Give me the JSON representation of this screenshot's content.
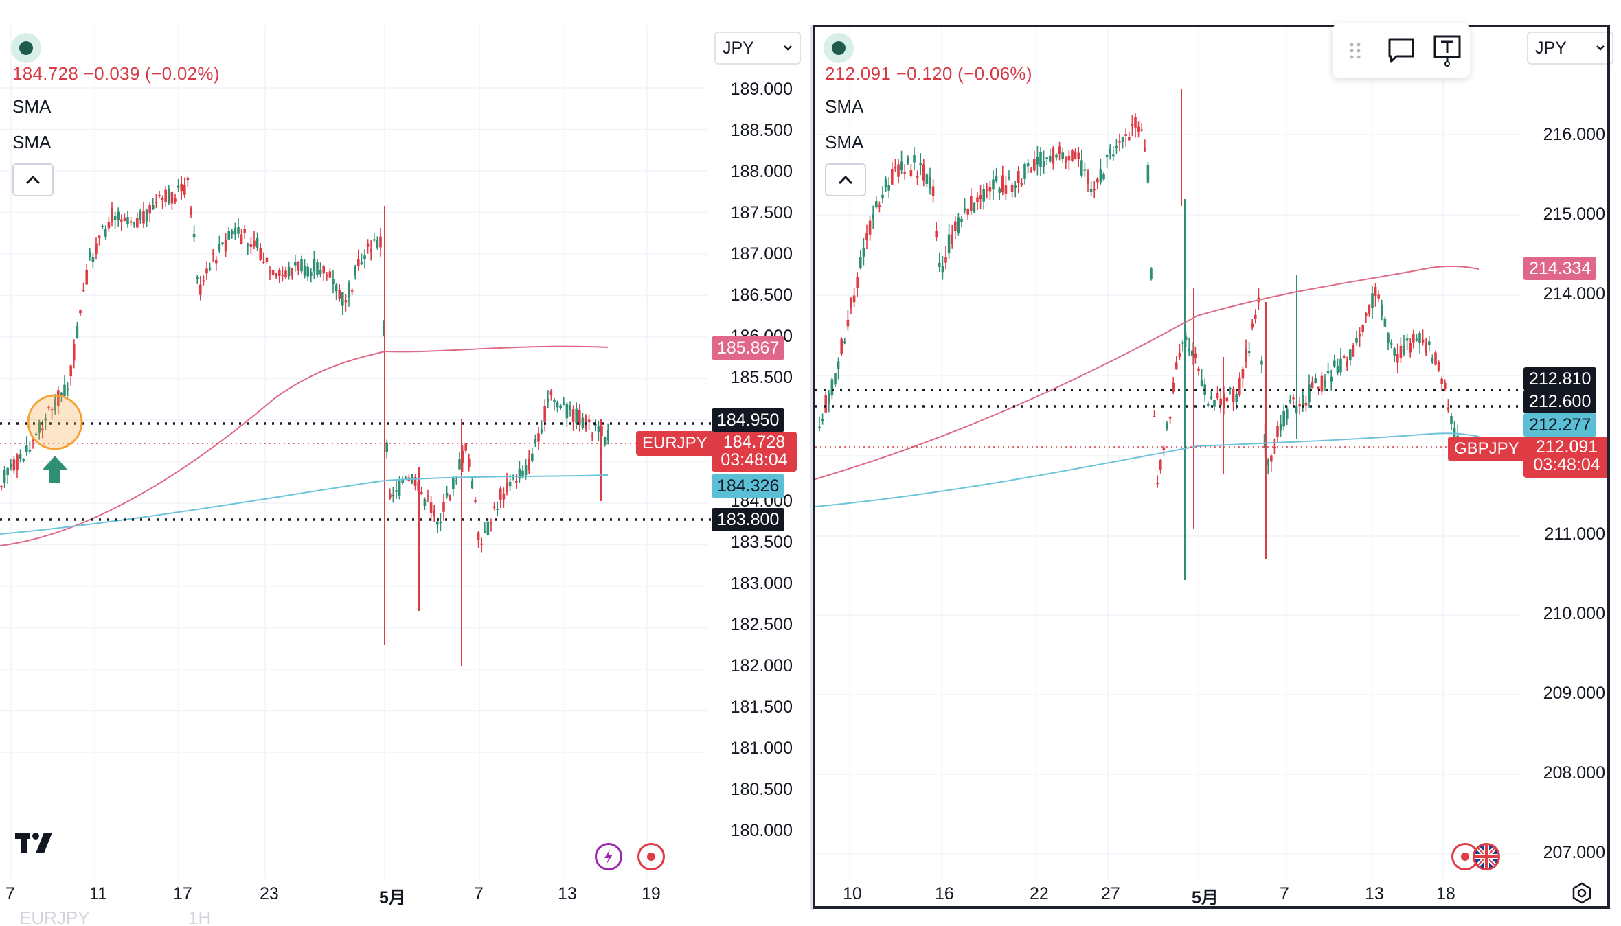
{
  "left_chart": {
    "symbol": "EURJPY",
    "timeframe": "1H",
    "currency": "JPY",
    "quote": "184.728 −0.039 (−0.02%)",
    "indicators": [
      "SMA",
      "SMA"
    ],
    "price_axis": [
      "189.000",
      "188.500",
      "188.000",
      "187.500",
      "187.000",
      "186.500",
      "186.000",
      "185.500",
      "184.000",
      "183.500",
      "183.000",
      "182.500",
      "182.000",
      "181.500",
      "181.000",
      "180.500",
      "180.000"
    ],
    "date_axis": [
      "7",
      "11",
      "17",
      "23",
      "5月",
      "7",
      "13",
      "19"
    ],
    "levels": {
      "upper": "184.950",
      "lower": "183.800"
    },
    "sma_long_label": "185.867",
    "sma_short_label": "184.326",
    "current_price": "184.728",
    "countdown": "03:48:04"
  },
  "right_chart": {
    "symbol": "GBPJPY",
    "currency": "JPY",
    "quote": "212.091 −0.120 (−0.06%)",
    "indicators": [
      "SMA",
      "SMA"
    ],
    "price_axis": [
      "216.000",
      "215.000",
      "214.000",
      "211.000",
      "210.000",
      "209.000",
      "208.000",
      "207.000"
    ],
    "date_axis": [
      "10",
      "16",
      "22",
      "27",
      "5月",
      "7",
      "13",
      "18"
    ],
    "levels": {
      "upper": "212.810",
      "lower": "212.600"
    },
    "sma_long_label": "214.334",
    "sma_short_label": "212.277",
    "current_price": "212.091",
    "countdown": "03:48:04"
  },
  "colors": {
    "up": "#2f8f74",
    "down": "#e03c46",
    "sma_long": "#de6a86",
    "sma_short": "#6cc3da",
    "highlight": "#f5a23a"
  },
  "icons": [
    "status-dot-icon",
    "collapse-chevron-up-icon",
    "tradingview-logo-icon",
    "lightning-icon",
    "record-icon",
    "drag-handle-icon",
    "comment-icon",
    "text-tool-icon",
    "uk-flag-icon",
    "settings-gear-icon"
  ]
}
